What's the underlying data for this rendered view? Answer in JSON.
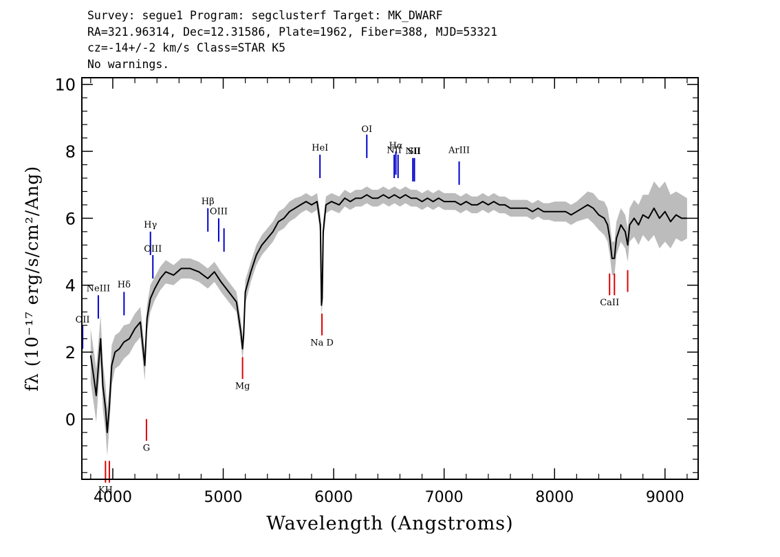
{
  "header": {
    "line1": "Survey: segue1 Program: segclusterf Target: MK_DWARF",
    "line2": "RA=321.96314, Dec=12.31586, Plate=1962, Fiber=388, MJD=53321",
    "line3": "cz=-14+/-2 km/s Class=STAR K5",
    "line4": "No warnings."
  },
  "chart_data": {
    "type": "line",
    "xlabel": "Wavelength (Angstroms)",
    "ylabel": "fλ (10⁻¹⁷ erg/s/cm²/Ang)",
    "xlim": [
      3720,
      9300
    ],
    "ylim": [
      -1.8,
      10.2
    ],
    "x_ticks": [
      4000,
      5000,
      6000,
      7000,
      8000,
      9000
    ],
    "y_ticks": [
      0,
      2,
      4,
      6,
      8,
      10
    ],
    "colors": {
      "spectrum": "#000000",
      "error": "#bcbcbc",
      "emission": "#0000cc",
      "absorption": "#dd0000"
    },
    "series": [
      {
        "x": [
          3800,
          3830,
          3850,
          3870,
          3890,
          3910,
          3935,
          3950,
          3970,
          3990,
          4020,
          4060,
          4100,
          4150,
          4200,
          4250,
          4290,
          4310,
          4340,
          4380,
          4430,
          4480,
          4550,
          4620,
          4700,
          4780,
          4860,
          4920,
          4980,
          5050,
          5120,
          5160,
          5175,
          5185,
          5200,
          5250,
          5300,
          5350,
          5400,
          5450,
          5500,
          5550,
          5600,
          5650,
          5700,
          5750,
          5800,
          5850,
          5880,
          5890,
          5896,
          5905,
          5930,
          5980,
          6050,
          6100,
          6150,
          6200,
          6250,
          6300,
          6350,
          6400,
          6450,
          6500,
          6550,
          6600,
          6650,
          6700,
          6750,
          6800,
          6850,
          6900,
          6950,
          7000,
          7050,
          7100,
          7150,
          7200,
          7250,
          7300,
          7350,
          7400,
          7450,
          7500,
          7550,
          7600,
          7650,
          7700,
          7750,
          7800,
          7850,
          7900,
          7950,
          8000,
          8050,
          8100,
          8150,
          8200,
          8250,
          8300,
          8350,
          8400,
          8450,
          8480,
          8500,
          8520,
          8542,
          8560,
          8600,
          8640,
          8662,
          8680,
          8720,
          8760,
          8800,
          8850,
          8900,
          8950,
          9000,
          9050,
          9100,
          9150,
          9200
        ],
        "y": [
          1.9,
          1.2,
          0.7,
          1.6,
          2.4,
          1.0,
          0.3,
          -0.4,
          0.4,
          1.6,
          2.0,
          2.1,
          2.3,
          2.4,
          2.7,
          2.9,
          1.6,
          3.0,
          3.6,
          3.9,
          4.2,
          4.4,
          4.3,
          4.5,
          4.5,
          4.4,
          4.2,
          4.4,
          4.1,
          3.8,
          3.5,
          2.6,
          2.1,
          2.5,
          3.8,
          4.4,
          4.9,
          5.2,
          5.4,
          5.6,
          5.9,
          6.0,
          6.2,
          6.3,
          6.4,
          6.5,
          6.4,
          6.5,
          5.8,
          3.4,
          3.6,
          5.6,
          6.4,
          6.5,
          6.4,
          6.6,
          6.5,
          6.6,
          6.6,
          6.7,
          6.6,
          6.6,
          6.7,
          6.6,
          6.7,
          6.6,
          6.7,
          6.6,
          6.6,
          6.5,
          6.6,
          6.5,
          6.6,
          6.5,
          6.5,
          6.5,
          6.4,
          6.5,
          6.4,
          6.4,
          6.5,
          6.4,
          6.5,
          6.4,
          6.4,
          6.3,
          6.3,
          6.3,
          6.3,
          6.2,
          6.3,
          6.2,
          6.2,
          6.2,
          6.2,
          6.2,
          6.1,
          6.2,
          6.3,
          6.4,
          6.3,
          6.1,
          6.0,
          5.8,
          5.4,
          4.8,
          4.8,
          5.4,
          5.8,
          5.6,
          5.2,
          5.8,
          6.0,
          5.8,
          6.1,
          6.0,
          6.3,
          6.0,
          6.2,
          5.9,
          6.1,
          6.0,
          6.0
        ],
        "err": [
          0.8,
          0.8,
          0.8,
          0.7,
          0.7,
          0.7,
          0.7,
          0.7,
          0.6,
          0.6,
          0.5,
          0.5,
          0.5,
          0.45,
          0.45,
          0.45,
          0.45,
          0.4,
          0.4,
          0.35,
          0.35,
          0.35,
          0.3,
          0.3,
          0.3,
          0.3,
          0.3,
          0.3,
          0.3,
          0.3,
          0.3,
          0.35,
          0.35,
          0.35,
          0.35,
          0.3,
          0.3,
          0.3,
          0.3,
          0.3,
          0.3,
          0.3,
          0.3,
          0.3,
          0.25,
          0.25,
          0.25,
          0.25,
          0.3,
          0.3,
          0.3,
          0.3,
          0.25,
          0.25,
          0.25,
          0.25,
          0.25,
          0.25,
          0.25,
          0.25,
          0.25,
          0.25,
          0.25,
          0.25,
          0.25,
          0.25,
          0.25,
          0.25,
          0.25,
          0.25,
          0.25,
          0.25,
          0.25,
          0.25,
          0.25,
          0.25,
          0.25,
          0.25,
          0.25,
          0.25,
          0.25,
          0.25,
          0.25,
          0.25,
          0.25,
          0.25,
          0.25,
          0.25,
          0.25,
          0.25,
          0.25,
          0.25,
          0.25,
          0.3,
          0.3,
          0.3,
          0.3,
          0.3,
          0.35,
          0.4,
          0.45,
          0.45,
          0.5,
          0.5,
          0.5,
          0.5,
          0.5,
          0.5,
          0.5,
          0.5,
          0.5,
          0.5,
          0.55,
          0.6,
          0.6,
          0.7,
          0.8,
          0.9,
          0.9,
          0.8,
          0.7,
          0.7,
          0.6
        ]
      }
    ],
    "emission_lines": [
      {
        "label": "OII",
        "x": 3727,
        "y0": 2.1,
        "y1": 2.8,
        "label_y": 2.88
      },
      {
        "label": "NeIII",
        "x": 3869,
        "y0": 3.0,
        "y1": 3.7,
        "label_y": 3.82
      },
      {
        "label": "Hδ",
        "x": 4102,
        "y0": 3.1,
        "y1": 3.8,
        "label_y": 3.93
      },
      {
        "label": "Hγ",
        "x": 4341,
        "y0": 4.9,
        "y1": 5.6,
        "label_y": 5.72
      },
      {
        "label": "OIII",
        "x": 4363,
        "y0": 4.2,
        "y1": 4.9,
        "label_y": 5.0
      },
      {
        "label": "Hβ",
        "x": 4861,
        "y0": 5.6,
        "y1": 6.3,
        "label_y": 6.42
      },
      {
        "label": "OIII",
        "x": 4959,
        "y0": 5.3,
        "y1": 6.0,
        "label_y": 6.12
      },
      {
        "label": "",
        "x": 5007,
        "y0": 5.0,
        "y1": 5.7,
        "label_y": 0
      },
      {
        "label": "HeI",
        "x": 5876,
        "y0": 7.2,
        "y1": 7.9,
        "label_y": 8.02
      },
      {
        "label": "OI",
        "x": 6300,
        "y0": 7.8,
        "y1": 8.5,
        "label_y": 8.58
      },
      {
        "label": "NII",
        "x": 6548,
        "y0": 7.2,
        "y1": 7.9,
        "label_y": 7.95
      },
      {
        "label": "Hα",
        "x": 6563,
        "y0": 7.3,
        "y1": 8.0,
        "label_y": 8.08
      },
      {
        "label": "",
        "x": 6583,
        "y0": 7.2,
        "y1": 7.9,
        "label_y": 0
      },
      {
        "label": "NII",
        "x": 6717,
        "y0": 7.1,
        "y1": 7.8,
        "label_y": 7.92
      },
      {
        "label": "SII",
        "x": 6731,
        "y0": 7.1,
        "y1": 7.8,
        "label_y": 7.92
      },
      {
        "label": "ArIII",
        "x": 7136,
        "y0": 7.0,
        "y1": 7.7,
        "label_y": 7.95
      }
    ],
    "absorption_lines": [
      {
        "label": "KH",
        "x": 3934,
        "y0": -1.9,
        "y1": -1.25,
        "label_y": -2.2
      },
      {
        "label": "",
        "x": 3969,
        "y0": -1.9,
        "y1": -1.25,
        "label_y": 0
      },
      {
        "label": "G",
        "x": 4305,
        "y0": -0.65,
        "y1": 0.0,
        "label_y": -0.95
      },
      {
        "label": "Mg",
        "x": 5175,
        "y0": 1.2,
        "y1": 1.85,
        "label_y": 0.9
      },
      {
        "label": "Na D",
        "x": 5894,
        "y0": 2.5,
        "y1": 3.15,
        "label_y": 2.2
      },
      {
        "label": "CaII",
        "x": 8498,
        "y0": 3.7,
        "y1": 4.35,
        "label_y": 3.4
      },
      {
        "label": "",
        "x": 8542,
        "y0": 3.7,
        "y1": 4.35,
        "label_y": 0
      },
      {
        "label": "",
        "x": 8662,
        "y0": 3.8,
        "y1": 4.45,
        "label_y": 0
      }
    ]
  }
}
